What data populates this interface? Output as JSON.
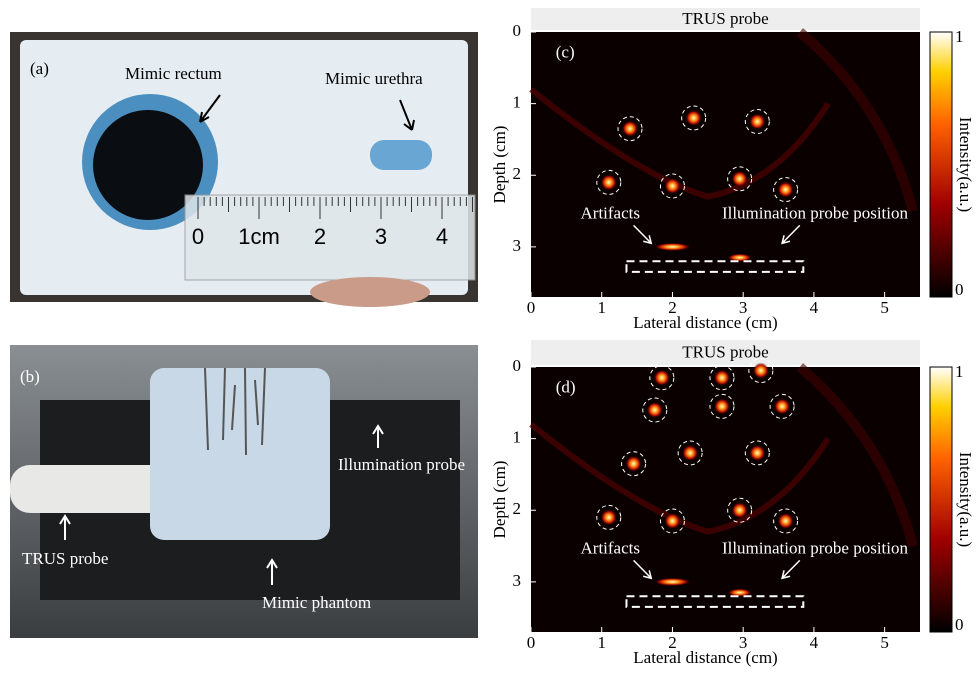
{
  "photos": [
    {
      "label": "(a)",
      "annotations": [
        "Mimic rectum",
        "Mimic urethra"
      ],
      "ruler_labels": [
        "0",
        "1cm",
        "2",
        "3",
        "4"
      ]
    },
    {
      "label": "(b)",
      "annotations": [
        "Illumination probe",
        "TRUS probe",
        "Mimic phantom"
      ]
    }
  ],
  "plots": [
    {
      "label": "(c)",
      "header": "TRUS probe",
      "x_label": "Lateral distance (cm)",
      "y_label": "Depth (cm)",
      "xlim": [
        0,
        5.5
      ],
      "ylim": [
        0,
        3.7
      ],
      "xticks": [
        0,
        1,
        2,
        3,
        4,
        5
      ],
      "yticks": [
        0,
        1,
        2,
        3
      ],
      "colorbar_label": "Intensity(a.u.)",
      "clim": [
        0,
        1
      ],
      "cticks": [
        0,
        1
      ],
      "annotations": [
        "Artifacts",
        "Illumination probe position"
      ],
      "spots": {
        "x": [
          1.4,
          2.3,
          3.2,
          1.1,
          2.0,
          2.95,
          3.6
        ],
        "y": [
          1.35,
          1.2,
          1.25,
          2.1,
          2.15,
          2.05,
          2.2
        ]
      }
    },
    {
      "label": "(d)",
      "header": "TRUS probe",
      "x_label": "Lateral distance (cm)",
      "y_label": "Depth (cm)",
      "xlim": [
        0,
        5.5
      ],
      "ylim": [
        0,
        3.7
      ],
      "xticks": [
        0,
        1,
        2,
        3,
        4,
        5
      ],
      "yticks": [
        0,
        1,
        2,
        3
      ],
      "colorbar_label": "Intensity(a.u.)",
      "clim": [
        0,
        1
      ],
      "cticks": [
        0,
        1
      ],
      "annotations": [
        "Artifacts",
        "Illumination probe position"
      ],
      "spots": {
        "x": [
          1.85,
          2.7,
          3.25,
          1.75,
          2.7,
          3.55,
          1.45,
          2.25,
          3.2,
          1.1,
          2.0,
          2.95,
          3.6
        ],
        "y": [
          0.15,
          0.15,
          0.05,
          0.6,
          0.55,
          0.55,
          1.35,
          1.2,
          1.2,
          2.1,
          2.15,
          2.0,
          2.15
        ]
      }
    }
  ]
}
